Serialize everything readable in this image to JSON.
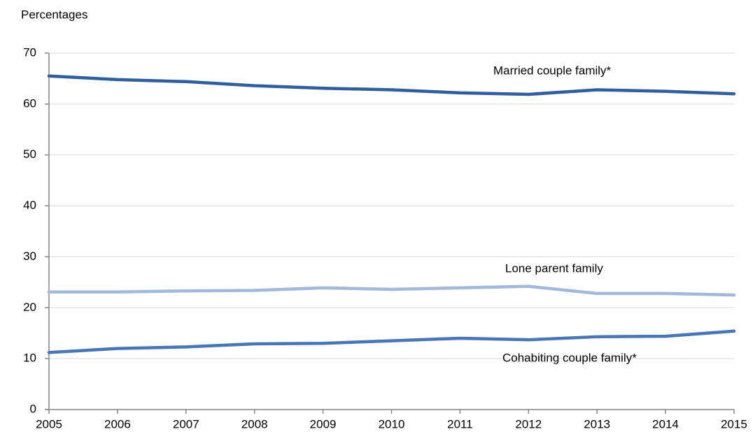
{
  "chart_data": {
    "type": "line",
    "y_label": "Percentages",
    "categories": [
      "2005",
      "2006",
      "2007",
      "2008",
      "2009",
      "2010",
      "2011",
      "2012",
      "2013",
      "2014",
      "2015"
    ],
    "series": [
      {
        "name": "Married couple family*",
        "color": "#2f5f9e",
        "values": [
          65.5,
          64.8,
          64.4,
          63.6,
          63.1,
          62.8,
          62.2,
          61.9,
          62.8,
          62.5,
          62.0
        ]
      },
      {
        "name": "Lone parent family",
        "color": "#a3b9da",
        "values": [
          23.1,
          23.1,
          23.3,
          23.4,
          23.9,
          23.6,
          23.9,
          24.2,
          22.8,
          22.8,
          22.5
        ]
      },
      {
        "name": "Cohabiting couple family*",
        "color": "#4876b6",
        "values": [
          11.2,
          12.0,
          12.3,
          12.9,
          13.0,
          13.5,
          14.0,
          13.7,
          14.3,
          14.4,
          15.4
        ]
      }
    ],
    "ylim": [
      0,
      70
    ],
    "yticks": [
      0,
      10,
      20,
      30,
      40,
      50,
      60,
      70
    ],
    "grid": true
  }
}
